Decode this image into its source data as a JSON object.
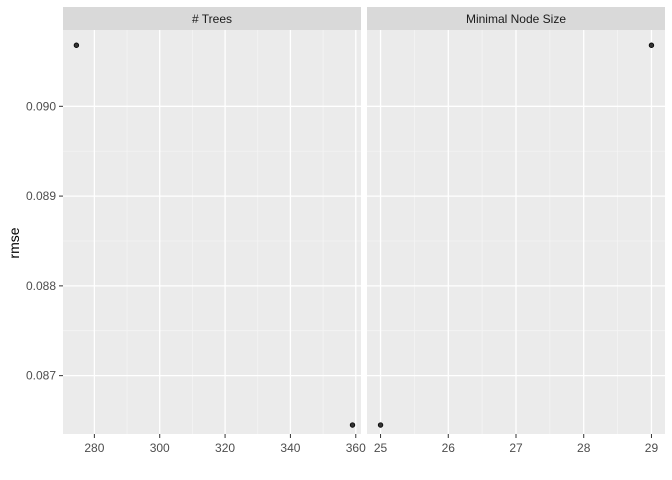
{
  "chart_data": {
    "type": "scatter",
    "ylabel": "rmse",
    "ylim": [
      0.08635,
      0.09085
    ],
    "y_ticks": [
      "0.087",
      "0.088",
      "0.089",
      "0.090"
    ],
    "panels": [
      {
        "title": "# Trees",
        "xlim": [
          270.4,
          361.6
        ],
        "x_ticks": [
          "280",
          "300",
          "320",
          "340",
          "360"
        ],
        "points": [
          {
            "x": 274.5,
            "y": 0.09068
          },
          {
            "x": 359,
            "y": 0.08645
          }
        ]
      },
      {
        "title": "Minimal Node Size",
        "xlim": [
          24.8,
          29.2
        ],
        "x_ticks": [
          "25",
          "26",
          "27",
          "28",
          "29"
        ],
        "points": [
          {
            "x": 25,
            "y": 0.08645
          },
          {
            "x": 29,
            "y": 0.09068
          }
        ]
      }
    ],
    "colors": {
      "panel_bg": "#ebebeb",
      "strip_bg": "#d9d9d9",
      "grid_major": "#ffffff",
      "point": "#000000"
    }
  }
}
